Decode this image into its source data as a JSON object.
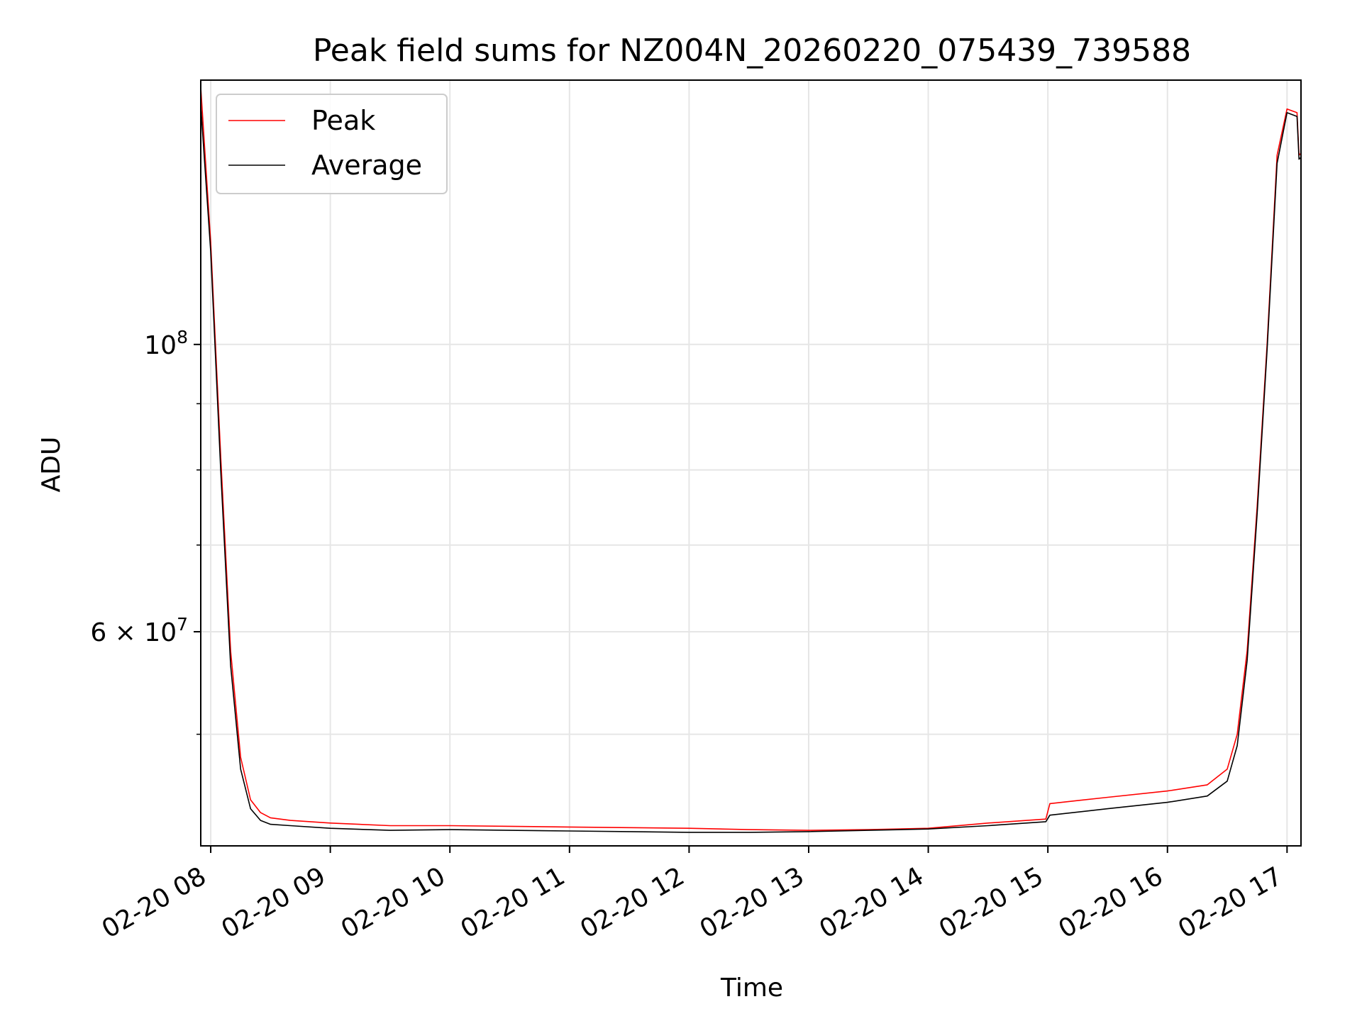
{
  "chart_data": {
    "type": "line",
    "title": "Peak field sums for NZ004N_20260220_075439_739588",
    "xlabel": "Time",
    "ylabel": "ADU",
    "y_scale": "log",
    "grid": true,
    "legend_placement": "upper-left",
    "colors": {
      "peak": "#ff0000",
      "average": "#000000",
      "grid": "#e6e6e6"
    },
    "xlim": [
      "2026-02-20 07:55",
      "2026-02-20 17:07"
    ],
    "ylim": [
      41000000,
      160000000
    ],
    "x_ticks": [
      {
        "value": "2026-02-20 08:00",
        "label": "02-20 08"
      },
      {
        "value": "2026-02-20 09:00",
        "label": "02-20 09"
      },
      {
        "value": "2026-02-20 10:00",
        "label": "02-20 10"
      },
      {
        "value": "2026-02-20 11:00",
        "label": "02-20 11"
      },
      {
        "value": "2026-02-20 12:00",
        "label": "02-20 12"
      },
      {
        "value": "2026-02-20 13:00",
        "label": "02-20 13"
      },
      {
        "value": "2026-02-20 14:00",
        "label": "02-20 14"
      },
      {
        "value": "2026-02-20 15:00",
        "label": "02-20 15"
      },
      {
        "value": "2026-02-20 16:00",
        "label": "02-20 16"
      },
      {
        "value": "2026-02-20 17:00",
        "label": "02-20 17"
      }
    ],
    "y_major_ticks": [
      {
        "value": 100000000,
        "label_base": "10",
        "label_exp": "8"
      },
      {
        "value": 60000000,
        "label_base": "6 × 10",
        "label_exp": "7"
      }
    ],
    "y_minor_ticks": [
      50000000,
      70000000,
      80000000,
      90000000
    ],
    "series": [
      {
        "name": "Peak",
        "x": [
          "2026-02-20 07:55",
          "2026-02-20 08:00",
          "2026-02-20 08:05",
          "2026-02-20 08:10",
          "2026-02-20 08:15",
          "2026-02-20 08:20",
          "2026-02-20 08:25",
          "2026-02-20 08:30",
          "2026-02-20 08:40",
          "2026-02-20 09:00",
          "2026-02-20 09:30",
          "2026-02-20 10:00",
          "2026-02-20 10:30",
          "2026-02-20 11:00",
          "2026-02-20 11:30",
          "2026-02-20 12:00",
          "2026-02-20 12:30",
          "2026-02-20 13:00",
          "2026-02-20 13:30",
          "2026-02-20 14:00",
          "2026-02-20 14:30",
          "2026-02-20 14:59",
          "2026-02-20 15:01",
          "2026-02-20 15:30",
          "2026-02-20 16:00",
          "2026-02-20 16:20",
          "2026-02-20 16:30",
          "2026-02-20 16:35",
          "2026-02-20 16:40",
          "2026-02-20 16:45",
          "2026-02-20 16:50",
          "2026-02-20 16:55",
          "2026-02-20 17:00",
          "2026-02-20 17:05",
          "2026-02-20 17:06",
          "2026-02-20 17:07"
        ],
        "y": [
          158000000,
          120000000,
          82000000,
          58000000,
          48000000,
          44500000,
          43500000,
          43100000,
          42900000,
          42700000,
          42500000,
          42500000,
          42450000,
          42400000,
          42350000,
          42300000,
          42200000,
          42150000,
          42200000,
          42300000,
          42700000,
          43000000,
          44200000,
          44700000,
          45200000,
          45700000,
          47000000,
          50000000,
          58000000,
          75000000,
          100000000,
          140000000,
          152000000,
          151000000,
          140000000,
          140500000
        ]
      },
      {
        "name": "Average",
        "x": [
          "2026-02-20 07:55",
          "2026-02-20 08:00",
          "2026-02-20 08:05",
          "2026-02-20 08:10",
          "2026-02-20 08:15",
          "2026-02-20 08:20",
          "2026-02-20 08:25",
          "2026-02-20 08:30",
          "2026-02-20 08:40",
          "2026-02-20 09:00",
          "2026-02-20 09:30",
          "2026-02-20 10:00",
          "2026-02-20 10:30",
          "2026-02-20 11:00",
          "2026-02-20 11:30",
          "2026-02-20 12:00",
          "2026-02-20 12:30",
          "2026-02-20 13:00",
          "2026-02-20 13:30",
          "2026-02-20 14:00",
          "2026-02-20 14:30",
          "2026-02-20 14:59",
          "2026-02-20 15:01",
          "2026-02-20 15:30",
          "2026-02-20 16:00",
          "2026-02-20 16:20",
          "2026-02-20 16:30",
          "2026-02-20 16:35",
          "2026-02-20 16:40",
          "2026-02-20 16:45",
          "2026-02-20 16:50",
          "2026-02-20 16:55",
          "2026-02-20 17:00",
          "2026-02-20 17:05",
          "2026-02-20 17:06",
          "2026-02-20 17:07"
        ],
        "y": [
          153000000,
          118000000,
          80000000,
          56500000,
          47000000,
          43800000,
          42900000,
          42600000,
          42500000,
          42300000,
          42150000,
          42200000,
          42150000,
          42100000,
          42050000,
          42000000,
          42000000,
          42050000,
          42150000,
          42250000,
          42500000,
          42800000,
          43300000,
          43800000,
          44300000,
          44800000,
          46000000,
          49000000,
          57000000,
          74000000,
          99000000,
          138000000,
          151000000,
          150000000,
          139000000,
          139500000
        ]
      }
    ]
  }
}
